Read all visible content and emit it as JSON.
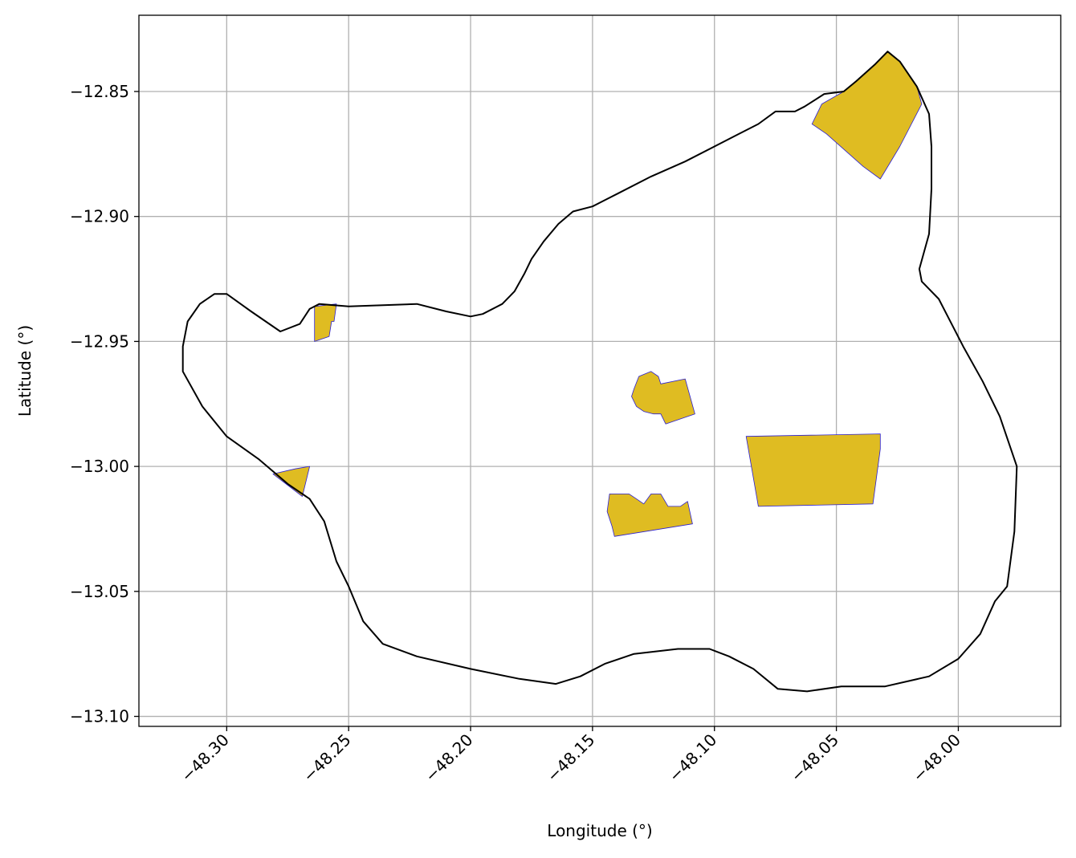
{
  "chart_data": {
    "type": "map",
    "xlabel": "Longitude (°)",
    "ylabel": "Latitude (°)",
    "xlim": [
      -48.336,
      -47.958
    ],
    "ylim": [
      -13.104,
      -12.8195
    ],
    "grid": true,
    "x_ticks": [
      {
        "value": -48.3,
        "label": "−48.30"
      },
      {
        "value": -48.25,
        "label": "−48.25"
      },
      {
        "value": -48.2,
        "label": "−48.20"
      },
      {
        "value": -48.15,
        "label": "−48.15"
      },
      {
        "value": -48.1,
        "label": "−48.10"
      },
      {
        "value": -48.05,
        "label": "−48.05"
      },
      {
        "value": -48.0,
        "label": "−48.00"
      }
    ],
    "y_ticks": [
      {
        "value": -12.85,
        "label": "−12.85"
      },
      {
        "value": -12.9,
        "label": "−12.90"
      },
      {
        "value": -12.95,
        "label": "−12.95"
      },
      {
        "value": -13.0,
        "label": "−13.00"
      },
      {
        "value": -13.05,
        "label": "−13.05"
      },
      {
        "value": -13.1,
        "label": "−13.10"
      }
    ],
    "boundary": {
      "stroke": "#000000",
      "coords": [
        [
          -48.3,
          -12.931
        ],
        [
          -48.29,
          -12.938
        ],
        [
          -48.278,
          -12.946
        ],
        [
          -48.27,
          -12.943
        ],
        [
          -48.266,
          -12.937
        ],
        [
          -48.262,
          -12.935
        ],
        [
          -48.25,
          -12.936
        ],
        [
          -48.222,
          -12.935
        ],
        [
          -48.21,
          -12.938
        ],
        [
          -48.2,
          -12.94
        ],
        [
          -48.195,
          -12.939
        ],
        [
          -48.187,
          -12.935
        ],
        [
          -48.182,
          -12.93
        ],
        [
          -48.178,
          -12.923
        ],
        [
          -48.175,
          -12.917
        ],
        [
          -48.17,
          -12.91
        ],
        [
          -48.164,
          -12.903
        ],
        [
          -48.158,
          -12.898
        ],
        [
          -48.15,
          -12.896
        ],
        [
          -48.146,
          -12.894
        ],
        [
          -48.14,
          -12.891
        ],
        [
          -48.126,
          -12.884
        ],
        [
          -48.112,
          -12.878
        ],
        [
          -48.09,
          -12.867
        ],
        [
          -48.082,
          -12.863
        ],
        [
          -48.075,
          -12.858
        ],
        [
          -48.067,
          -12.858
        ],
        [
          -48.063,
          -12.856
        ],
        [
          -48.055,
          -12.851
        ],
        [
          -48.047,
          -12.85
        ],
        [
          -48.042,
          -12.846
        ],
        [
          -48.034,
          -12.839
        ],
        [
          -48.029,
          -12.834
        ],
        [
          -48.024,
          -12.838
        ],
        [
          -48.017,
          -12.848
        ],
        [
          -48.012,
          -12.859
        ],
        [
          -48.011,
          -12.872
        ],
        [
          -48.011,
          -12.889
        ],
        [
          -48.012,
          -12.907
        ],
        [
          -48.016,
          -12.921
        ],
        [
          -48.015,
          -12.926
        ],
        [
          -48.008,
          -12.933
        ],
        [
          -47.998,
          -12.952
        ],
        [
          -47.99,
          -12.966
        ],
        [
          -47.983,
          -12.98
        ],
        [
          -47.976,
          -13.0
        ],
        [
          -47.977,
          -13.026
        ],
        [
          -47.98,
          -13.048
        ],
        [
          -47.985,
          -13.054
        ],
        [
          -47.991,
          -13.067
        ],
        [
          -48.0,
          -13.077
        ],
        [
          -48.012,
          -13.084
        ],
        [
          -48.03,
          -13.088
        ],
        [
          -48.048,
          -13.088
        ],
        [
          -48.062,
          -13.09
        ],
        [
          -48.074,
          -13.089
        ],
        [
          -48.084,
          -13.081
        ],
        [
          -48.094,
          -13.076
        ],
        [
          -48.102,
          -13.073
        ],
        [
          -48.115,
          -13.073
        ],
        [
          -48.133,
          -13.075
        ],
        [
          -48.145,
          -13.079
        ],
        [
          -48.155,
          -13.084
        ],
        [
          -48.165,
          -13.087
        ],
        [
          -48.18,
          -13.085
        ],
        [
          -48.2,
          -13.081
        ],
        [
          -48.222,
          -13.076
        ],
        [
          -48.236,
          -13.071
        ],
        [
          -48.244,
          -13.062
        ],
        [
          -48.25,
          -13.048
        ],
        [
          -48.255,
          -13.038
        ],
        [
          -48.26,
          -13.022
        ],
        [
          -48.266,
          -13.013
        ],
        [
          -48.275,
          -13.007
        ],
        [
          -48.287,
          -12.997
        ],
        [
          -48.3,
          -12.988
        ],
        [
          -48.31,
          -12.976
        ],
        [
          -48.318,
          -12.962
        ],
        [
          -48.318,
          -12.952
        ],
        [
          -48.316,
          -12.942
        ],
        [
          -48.311,
          -12.935
        ],
        [
          -48.305,
          -12.931
        ],
        [
          -48.3,
          -12.931
        ]
      ]
    },
    "areas": {
      "fill": "#dfbc22",
      "stroke": "#2a1fd6",
      "polygons": [
        [
          [
            -48.264,
            -12.936
          ],
          [
            -48.255,
            -12.935
          ],
          [
            -48.256,
            -12.942
          ],
          [
            -48.257,
            -12.942
          ],
          [
            -48.258,
            -12.948
          ],
          [
            -48.264,
            -12.95
          ],
          [
            -48.264,
            -12.936
          ]
        ],
        [
          [
            -48.281,
            -13.003
          ],
          [
            -48.272,
            -13.001
          ],
          [
            -48.266,
            -13.0
          ],
          [
            -48.269,
            -13.012
          ],
          [
            -48.281,
            -13.003
          ]
        ],
        [
          [
            -48.06,
            -12.863
          ],
          [
            -48.056,
            -12.855
          ],
          [
            -48.047,
            -12.85
          ],
          [
            -48.042,
            -12.846
          ],
          [
            -48.034,
            -12.839
          ],
          [
            -48.029,
            -12.834
          ],
          [
            -48.024,
            -12.838
          ],
          [
            -48.017,
            -12.848
          ],
          [
            -48.015,
            -12.855
          ],
          [
            -48.024,
            -12.872
          ],
          [
            -48.032,
            -12.885
          ],
          [
            -48.039,
            -12.88
          ],
          [
            -48.054,
            -12.867
          ],
          [
            -48.06,
            -12.863
          ]
        ],
        [
          [
            -48.131,
            -12.964
          ],
          [
            -48.126,
            -12.962
          ],
          [
            -48.123,
            -12.964
          ],
          [
            -48.122,
            -12.967
          ],
          [
            -48.112,
            -12.965
          ],
          [
            -48.108,
            -12.979
          ],
          [
            -48.12,
            -12.983
          ],
          [
            -48.122,
            -12.979
          ],
          [
            -48.125,
            -12.979
          ],
          [
            -48.129,
            -12.978
          ],
          [
            -48.132,
            -12.976
          ],
          [
            -48.134,
            -12.972
          ],
          [
            -48.133,
            -12.969
          ],
          [
            -48.131,
            -12.964
          ]
        ],
        [
          [
            -48.087,
            -12.988
          ],
          [
            -48.032,
            -12.987
          ],
          [
            -48.032,
            -12.993
          ],
          [
            -48.035,
            -13.015
          ],
          [
            -48.082,
            -13.016
          ],
          [
            -48.087,
            -12.988
          ]
        ],
        [
          [
            -48.143,
            -13.011
          ],
          [
            -48.135,
            -13.011
          ],
          [
            -48.132,
            -13.013
          ],
          [
            -48.129,
            -13.015
          ],
          [
            -48.126,
            -13.011
          ],
          [
            -48.122,
            -13.011
          ],
          [
            -48.119,
            -13.016
          ],
          [
            -48.114,
            -13.016
          ],
          [
            -48.111,
            -13.014
          ],
          [
            -48.109,
            -13.023
          ],
          [
            -48.141,
            -13.028
          ],
          [
            -48.142,
            -13.024
          ],
          [
            -48.144,
            -13.018
          ],
          [
            -48.143,
            -13.011
          ]
        ]
      ]
    }
  }
}
